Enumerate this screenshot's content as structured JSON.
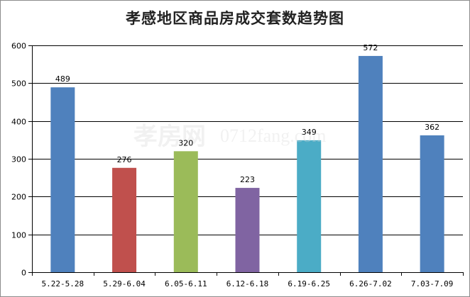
{
  "chart_data": {
    "type": "bar",
    "title": "孝感地区商品房成交套数趋势图",
    "categories": [
      "5.22-5.28",
      "5.29-6.04",
      "6.05-6.11",
      "6.12-6.18",
      "6.19-6.25",
      "6.26-7.02",
      "7.03-7.09"
    ],
    "values": [
      489,
      276,
      320,
      223,
      349,
      572,
      362
    ],
    "bar_colors": [
      "#4f81bd",
      "#c0504d",
      "#9bbb59",
      "#8064a2",
      "#4bacc6",
      "#4f81bd",
      "#4f81bd"
    ],
    "ylim": [
      0,
      600
    ],
    "yticks": [
      0,
      100,
      200,
      300,
      400,
      500,
      600
    ],
    "grid": true,
    "legend": "none"
  },
  "watermark": {
    "brand": "孝房网",
    "domain": "0712fang.com"
  }
}
